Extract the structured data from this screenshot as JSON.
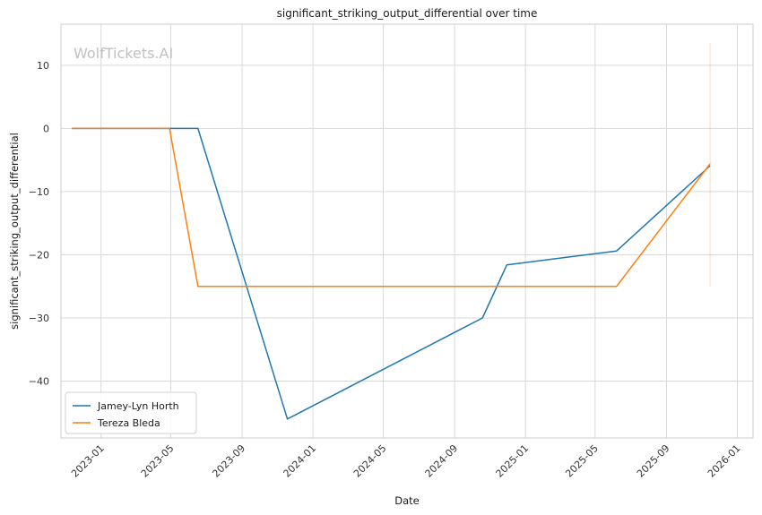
{
  "chart_data": {
    "type": "line",
    "title": "significant_striking_output_differential over time",
    "xlabel": "Date",
    "ylabel": "significant_striking_output_differential",
    "watermark": "WolfTickets.AI",
    "x_ticks": [
      "2023-01",
      "2023-05",
      "2023-09",
      "2024-01",
      "2024-05",
      "2024-09",
      "2025-01",
      "2025-05",
      "2025-09",
      "2026-01"
    ],
    "y_ticks": [
      10,
      0,
      -10,
      -20,
      -30,
      -40
    ],
    "ylim": [
      -49,
      16.5
    ],
    "xlim": [
      "2022-10-24",
      "2026-01-28"
    ],
    "grid": true,
    "legend_position": "bottom-left",
    "series": [
      {
        "name": "Jamey-Lyn Horth",
        "color": "#1f77b4",
        "points": [
          {
            "x": "2022-11-12",
            "y": 0
          },
          {
            "x": "2023-04-29",
            "y": 0
          },
          {
            "x": "2023-06-17",
            "y": 0
          },
          {
            "x": "2023-11-18",
            "y": -46
          },
          {
            "x": "2024-10-19",
            "y": -30
          },
          {
            "x": "2024-11-30",
            "y": -21.6
          },
          {
            "x": "2025-06-07",
            "y": -19.4
          },
          {
            "x": "2025-11-15",
            "y": -5.9
          }
        ]
      },
      {
        "name": "Tereza Bleda",
        "color": "#ff7f0e",
        "points": [
          {
            "x": "2022-11-12",
            "y": 0
          },
          {
            "x": "2023-04-29",
            "y": 0
          },
          {
            "x": "2023-06-17",
            "y": -25
          },
          {
            "x": "2025-06-07",
            "y": -25
          },
          {
            "x": "2025-11-15",
            "y": -5.6
          }
        ]
      }
    ],
    "reference_line": {
      "x": "2025-11-15",
      "y_from": -25,
      "y_to": 13.5,
      "color": "#f6b48a"
    }
  }
}
